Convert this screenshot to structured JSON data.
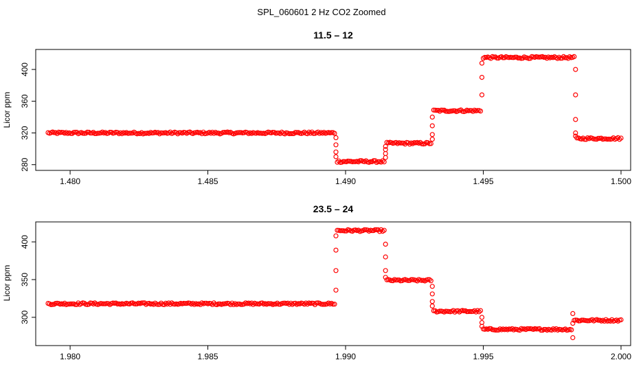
{
  "figure": {
    "title": "SPL_060601 2 Hz CO2 Zoomed"
  },
  "chart_data": [
    {
      "type": "scatter",
      "title": "11.5 – 12",
      "xlabel": "",
      "ylabel": "Licor ppm",
      "xlim": [
        1.4791,
        1.5
      ],
      "ylim": [
        278,
        420
      ],
      "x_ticks": [
        1.48,
        1.485,
        1.49,
        1.495,
        1.5
      ],
      "x_tick_labels": [
        "1.480",
        "1.485",
        "1.490",
        "1.495",
        "1.500"
      ],
      "y_ticks": [
        280,
        320,
        360,
        400
      ],
      "y_tick_labels": [
        "280",
        "320",
        "360",
        "400"
      ],
      "grid": false,
      "marker": "open-circle",
      "color": "#ff0000",
      "segments": [
        {
          "x_start": 1.4792,
          "x_end": 1.4896,
          "value": 320
        },
        {
          "x_start": 1.4897,
          "x_end": 1.4914,
          "value": 284
        },
        {
          "x_start": 1.4915,
          "x_end": 1.4931,
          "value": 307
        },
        {
          "x_start": 1.4932,
          "x_end": 1.4949,
          "value": 348
        },
        {
          "x_start": 1.495,
          "x_end": 1.4983,
          "value": 415
        },
        {
          "x_start": 1.4984,
          "x_end": 1.5,
          "value": 313
        }
      ],
      "transitions": [
        {
          "x": 1.48965,
          "values": [
            314,
            305,
            296,
            290
          ]
        },
        {
          "x": 1.49145,
          "values": [
            289,
            294,
            299,
            303
          ]
        },
        {
          "x": 1.49315,
          "values": [
            312,
            318,
            329,
            340
          ]
        },
        {
          "x": 1.49495,
          "values": [
            368,
            390,
            408
          ]
        },
        {
          "x": 1.49835,
          "values": [
            400,
            368,
            337,
            320,
            316
          ]
        }
      ]
    },
    {
      "type": "scatter",
      "title": "23.5 – 24",
      "xlabel": "",
      "ylabel": "Licor ppm",
      "xlim": [
        1.9791,
        2.0
      ],
      "ylim": [
        268,
        421
      ],
      "x_ticks": [
        1.98,
        1.985,
        1.99,
        1.995,
        2.0
      ],
      "x_tick_labels": [
        "1.980",
        "1.985",
        "1.990",
        "1.995",
        "2.000"
      ],
      "y_ticks": [
        300,
        350,
        400
      ],
      "y_tick_labels": [
        "300",
        "350",
        "400"
      ],
      "grid": false,
      "marker": "open-circle",
      "color": "#ff0000",
      "segments": [
        {
          "x_start": 1.9792,
          "x_end": 1.9896,
          "value": 318
        },
        {
          "x_start": 1.9897,
          "x_end": 1.9914,
          "value": 415
        },
        {
          "x_start": 1.9915,
          "x_end": 1.9931,
          "value": 349
        },
        {
          "x_start": 1.9932,
          "x_end": 1.9949,
          "value": 308
        },
        {
          "x_start": 1.995,
          "x_end": 1.9982,
          "value": 284
        },
        {
          "x_start": 1.9983,
          "x_end": 2.0,
          "value": 296
        }
      ],
      "transitions": [
        {
          "x": 1.98965,
          "values": [
            336,
            362,
            389,
            408
          ]
        },
        {
          "x": 1.99145,
          "values": [
            397,
            380,
            362,
            353
          ]
        },
        {
          "x": 1.99315,
          "values": [
            341,
            331,
            321,
            315
          ]
        },
        {
          "x": 1.99495,
          "values": [
            300,
            293,
            288
          ]
        },
        {
          "x": 1.99825,
          "values": [
            305,
            273,
            292
          ]
        }
      ]
    }
  ]
}
